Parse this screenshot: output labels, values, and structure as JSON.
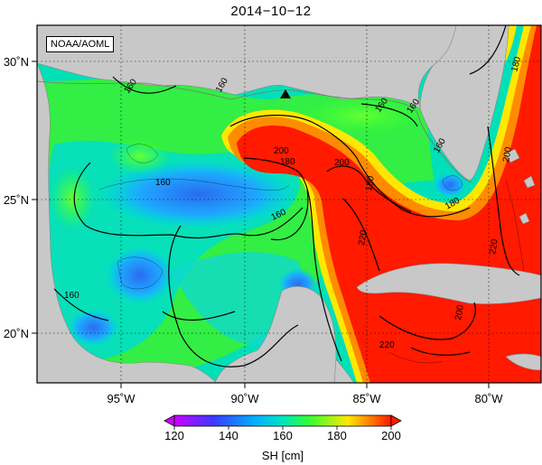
{
  "title": "2014−10−12",
  "credit": "NOAA/AOML",
  "colorbar": {
    "label": "SH [cm]",
    "ticks": [
      "120",
      "140",
      "160",
      "180",
      "200"
    ]
  },
  "axes": {
    "lon_ticks": [
      "95˚W",
      "90˚W",
      "85˚W",
      "80˚W"
    ],
    "lat_ticks": [
      "30˚N",
      "25˚N",
      "20˚N"
    ]
  },
  "contour_labels": [
    "160",
    "160",
    "160",
    "160",
    "160",
    "160",
    "180",
    "180",
    "180",
    "200",
    "200",
    "200",
    "220",
    "220",
    "220",
    "200",
    "160",
    "160",
    "180"
  ],
  "markers": [
    {
      "name": "buoy-triangle",
      "lon": -88.1,
      "lat": 28.9
    }
  ],
  "colors": {
    "land": "#c8c8c8",
    "low": "#cc00ff",
    "mid_low": "#2a6cf0",
    "mid": "#00e5c0",
    "mid_high": "#33ff33",
    "high": "#ffe800",
    "max": "#ff1a00"
  }
}
